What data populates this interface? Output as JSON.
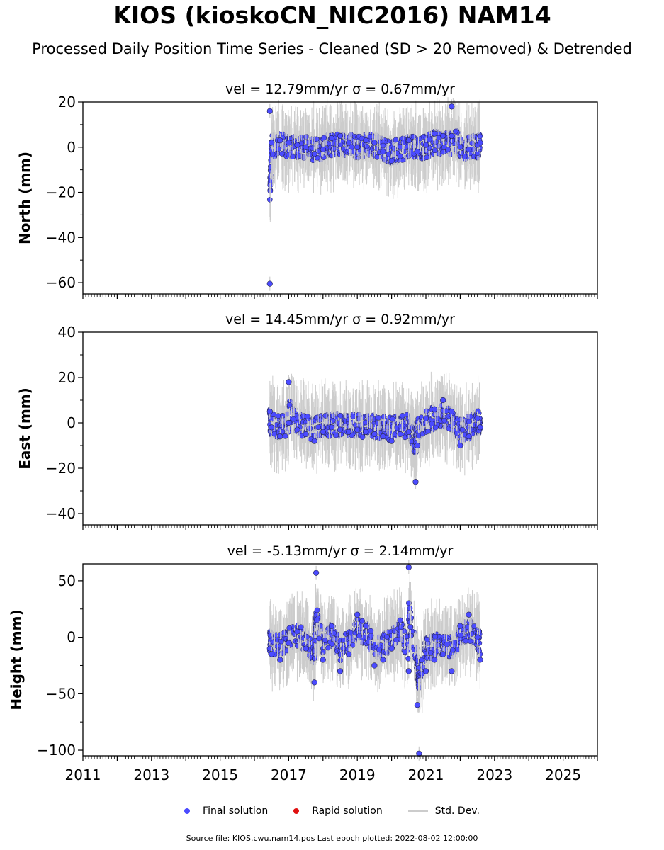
{
  "title": "KIOS (kioskoCN_NIC2016) NAM14",
  "subtitle": "Processed Daily Position Time Series - Cleaned (SD > 20 Removed) & Detrended",
  "legend": {
    "final": "Final solution",
    "rapid": "Rapid solution",
    "std": "Std. Dev."
  },
  "footer": "Source file: KIOS.cwu.nam14.pos  Last epoch plotted: 2022-08-02 12:00:00",
  "colors": {
    "final": "#4b4bff",
    "rapid": "#e01010",
    "std": "#cccccc"
  },
  "chart_data": [
    {
      "type": "scatter",
      "title": "vel = 12.79mm/yr   σ = 0.67mm/yr",
      "ylabel": "North (mm)",
      "xlim": [
        2011,
        2026
      ],
      "ylim": [
        -65,
        20
      ],
      "yticks": [
        20,
        0,
        -20,
        -40,
        -60
      ],
      "series": [
        {
          "name": "Final solution",
          "x": [
            2016.45,
            2016.45,
            2016.5,
            2016.75,
            2017.0,
            2017.25,
            2017.5,
            2017.75,
            2018.0,
            2018.25,
            2018.5,
            2018.75,
            2019.0,
            2019.25,
            2019.5,
            2019.75,
            2020.0,
            2020.25,
            2020.5,
            2020.75,
            2021.0,
            2021.25,
            2021.5,
            2021.75,
            2021.75,
            2022.0,
            2022.25,
            2022.5,
            2022.58
          ],
          "y": [
            16,
            -60.5,
            2,
            3,
            2,
            1,
            0,
            -3,
            -1,
            4,
            5,
            2,
            0,
            3,
            2,
            -2,
            -6,
            -4,
            3,
            -2,
            1,
            6,
            5,
            5,
            18,
            0,
            -1,
            1,
            2
          ]
        }
      ]
    },
    {
      "type": "scatter",
      "title": "vel = 14.45mm/yr   σ = 0.92mm/yr",
      "ylabel": "East (mm)",
      "xlim": [
        2011,
        2026
      ],
      "ylim": [
        -45,
        40
      ],
      "yticks": [
        40,
        20,
        0,
        -20,
        -40
      ],
      "series": [
        {
          "name": "Final solution",
          "x": [
            2016.45,
            2016.5,
            2016.75,
            2017.0,
            2017.0,
            2017.25,
            2017.5,
            2017.75,
            2018.0,
            2018.25,
            2018.5,
            2018.75,
            2019.0,
            2019.25,
            2019.5,
            2019.75,
            2020.0,
            2020.25,
            2020.5,
            2020.7,
            2020.75,
            2021.0,
            2021.25,
            2021.5,
            2021.75,
            2022.0,
            2022.25,
            2022.5,
            2022.58
          ],
          "y": [
            5,
            -2,
            -6,
            0,
            18,
            -3,
            -5,
            -8,
            -4,
            -2,
            -3,
            -4,
            -3,
            -4,
            -5,
            -6,
            -8,
            -5,
            -4,
            -26,
            -10,
            2,
            6,
            10,
            5,
            -10,
            -6,
            2,
            -2
          ]
        }
      ]
    },
    {
      "type": "scatter",
      "title": "vel = -5.13mm/yr   σ = 2.14mm/yr",
      "ylabel": "Height (mm)",
      "xlim": [
        2011,
        2026
      ],
      "ylim": [
        -105,
        65
      ],
      "yticks": [
        50,
        0,
        -50,
        -100
      ],
      "xticks": [
        2011,
        2013,
        2015,
        2017,
        2019,
        2021,
        2023,
        2025
      ],
      "series": [
        {
          "name": "Final solution",
          "x": [
            2016.45,
            2016.5,
            2016.75,
            2017.0,
            2017.25,
            2017.5,
            2017.75,
            2017.8,
            2018.0,
            2018.25,
            2018.5,
            2018.75,
            2019.0,
            2019.25,
            2019.5,
            2019.75,
            2020.0,
            2020.25,
            2020.5,
            2020.5,
            2020.75,
            2020.8,
            2021.0,
            2021.25,
            2021.5,
            2021.75,
            2022.0,
            2022.25,
            2022.5,
            2022.58
          ],
          "y": [
            -10,
            -15,
            -20,
            -5,
            5,
            -10,
            -40,
            57,
            -20,
            10,
            -30,
            -15,
            20,
            10,
            -25,
            -20,
            -10,
            15,
            -30,
            62,
            -60,
            -103,
            -30,
            -20,
            -15,
            -30,
            10,
            20,
            0,
            -20
          ]
        }
      ]
    }
  ]
}
